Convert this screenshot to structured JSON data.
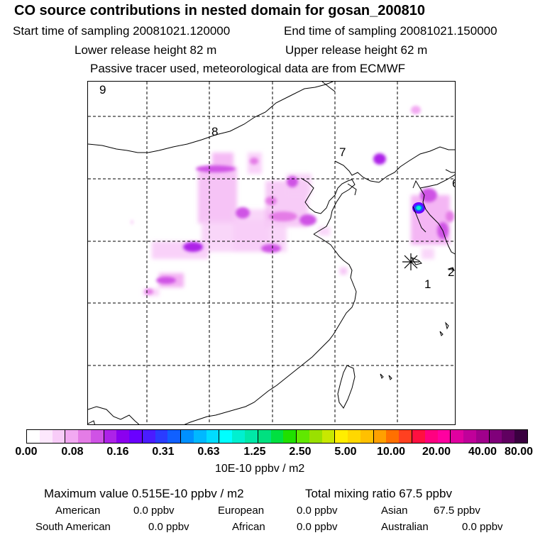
{
  "header": {
    "title": "CO  source contributions in nested domain for gosan_200810",
    "start_label": "Start time of sampling 20081021.120000",
    "end_label": "End time of sampling 20081021.150000",
    "lower_label": "Lower release height   82 m",
    "upper_label": "Upper release height   62 m",
    "tracer_label": "Passive tracer used, meteorological data are from ECMWF"
  },
  "map": {
    "markers": [
      "9",
      "8",
      "7",
      "6",
      "2",
      "1"
    ],
    "receptor_symbol": "✳"
  },
  "colorbar": {
    "tick_labels": [
      "0.00",
      "0.08",
      "0.16",
      "0.31",
      "0.63",
      "1.25",
      "2.50",
      "5.00",
      "10.00",
      "20.00",
      "40.00",
      "80.00"
    ],
    "units": "10E-10 ppbv / m2",
    "colors": [
      "#ffffff",
      "#fde8fd",
      "#f8ccf8",
      "#f2a9f2",
      "#e47ce6",
      "#cf52e5",
      "#ad22e8",
      "#8b00ef",
      "#6a00ff",
      "#4a1cff",
      "#2a3cff",
      "#1060ff",
      "#0090ff",
      "#00b8ff",
      "#00dcff",
      "#00ffff",
      "#00f0d0",
      "#00e8a8",
      "#00e080",
      "#00e040",
      "#20e000",
      "#60e800",
      "#9ae000",
      "#c8e800",
      "#ffee00",
      "#ffd800",
      "#ffc000",
      "#ffa000",
      "#ff7000",
      "#ff4020",
      "#ff1040",
      "#ff0080",
      "#ff00a0",
      "#e000a0",
      "#c0009a",
      "#a0008c",
      "#80007a",
      "#600060",
      "#3a0040"
    ]
  },
  "footer": {
    "max_label": "Maximum value  0.515E-10 ppbv / m2",
    "total_label": "Total mixing ratio       67.5 ppbv",
    "american_label": "American",
    "american_value": "0.0 ppbv",
    "european_label": "European",
    "european_value": "0.0 ppbv",
    "asian_label": "Asian",
    "asian_value": "67.5 ppbv",
    "south_american_label": "South American",
    "south_american_value": "0.0 ppbv",
    "african_label": "African",
    "african_value": "0.0 ppbv",
    "australian_label": "Australian",
    "australian_value": "0.0 ppbv"
  }
}
